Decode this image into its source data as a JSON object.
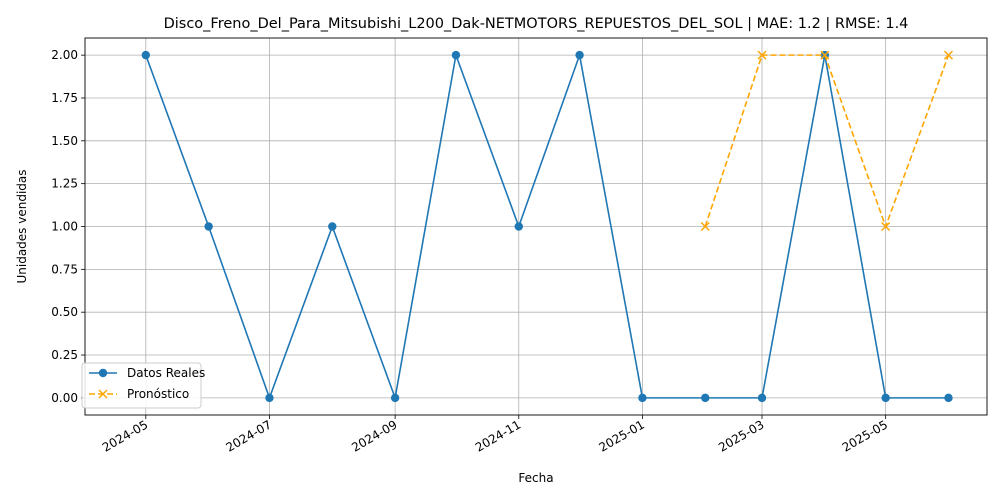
{
  "chart_data": {
    "type": "line",
    "title": "Disco_Freno_Del_Para_Mitsubishi_L200_Dak-NETMOTORS_REPUESTOS_DEL_SOL | MAE: 1.2 | RMSE: 1.4",
    "xlabel": "Fecha",
    "ylabel": "Unidades vendidas",
    "ylim": [
      -0.1,
      2.1
    ],
    "xlim": [
      "2024-04-01",
      "2025-06-20"
    ],
    "x_ticks": [
      "2024-05",
      "2024-07",
      "2024-09",
      "2024-11",
      "2025-01",
      "2025-03",
      "2025-05"
    ],
    "y_ticks": [
      "0.00",
      "0.25",
      "0.50",
      "0.75",
      "1.00",
      "1.25",
      "1.50",
      "1.75",
      "2.00"
    ],
    "grid": true,
    "legend_position": "lower-left",
    "series": [
      {
        "name": "Datos Reales",
        "color": "#1f77b4",
        "line_style": "solid",
        "marker": "circle",
        "x": [
          "2024-05-01",
          "2024-06-01",
          "2024-07-01",
          "2024-08-01",
          "2024-09-01",
          "2024-10-01",
          "2024-11-01",
          "2024-12-01",
          "2025-01-01",
          "2025-02-01",
          "2025-03-01",
          "2025-04-01",
          "2025-05-01",
          "2025-06-01"
        ],
        "values": [
          2,
          1,
          0,
          1,
          0,
          2,
          1,
          2,
          0,
          0,
          0,
          2,
          0,
          0
        ]
      },
      {
        "name": "Pronóstico",
        "color": "#ffa500",
        "line_style": "dashed",
        "marker": "x",
        "x": [
          "2025-02-01",
          "2025-03-01",
          "2025-04-01",
          "2025-05-01",
          "2025-06-01"
        ],
        "values": [
          1,
          2,
          2,
          1,
          2
        ]
      }
    ]
  }
}
